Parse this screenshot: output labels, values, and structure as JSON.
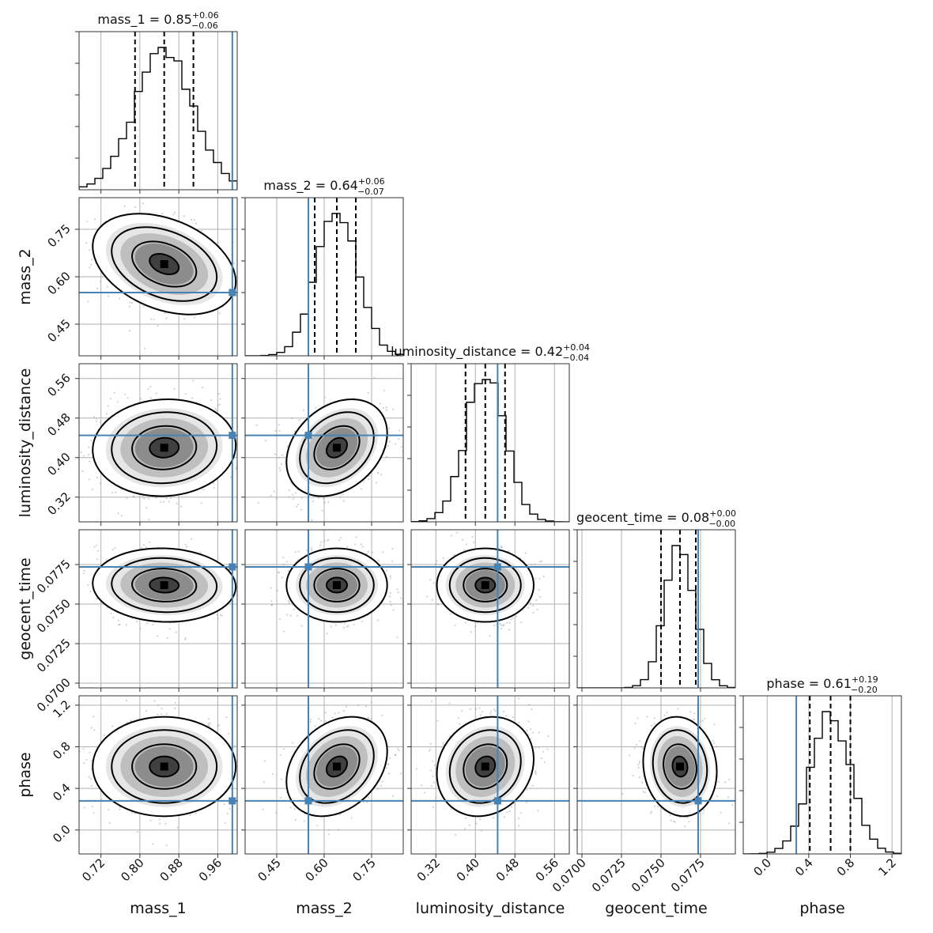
{
  "chart_data": {
    "type": "corner",
    "parameters": [
      "mass_1",
      "mass_2",
      "luminosity_distance",
      "geocent_time",
      "phase"
    ],
    "axis_labels": [
      "mass_1",
      "mass_2",
      "luminosity_distance",
      "geocent_time",
      "phase"
    ],
    "titles": [
      {
        "name": "mass_1",
        "median": "0.85",
        "plus": "+0.06",
        "minus": "−0.06"
      },
      {
        "name": "mass_2",
        "median": "0.64",
        "plus": "+0.06",
        "minus": "−0.07"
      },
      {
        "name": "luminosity_distance",
        "median": "0.42",
        "plus": "+0.04",
        "minus": "−0.04"
      },
      {
        "name": "geocent_time",
        "median": "0.08",
        "plus": "+0.00",
        "minus": "−0.00"
      },
      {
        "name": "phase",
        "median": "0.61",
        "plus": "+0.19",
        "minus": "−0.20"
      }
    ],
    "ranges": [
      [
        0.675,
        1.0
      ],
      [
        0.35,
        0.85
      ],
      [
        0.27,
        0.59
      ],
      [
        0.0697,
        0.0797
      ],
      [
        -0.23,
        1.29
      ]
    ],
    "ticks": [
      [
        0.72,
        0.8,
        0.88,
        0.96
      ],
      [
        0.45,
        0.6,
        0.75
      ],
      [
        0.32,
        0.4,
        0.48,
        0.56
      ],
      [
        0.07,
        0.0725,
        0.075,
        0.0775
      ],
      [
        0.0,
        0.4,
        0.8,
        1.2
      ]
    ],
    "tick_labels": [
      [
        "0.72",
        "0.80",
        "0.88",
        "0.96"
      ],
      [
        "0.45",
        "0.60",
        "0.75"
      ],
      [
        "0.32",
        "0.40",
        "0.48",
        "0.56"
      ],
      [
        "0.0700",
        "0.0725",
        "0.0750",
        "0.0775"
      ],
      [
        "0.0",
        "0.4",
        "0.8",
        "1.2"
      ]
    ],
    "truths": [
      0.99,
      0.55,
      0.445,
      0.07735,
      0.28
    ],
    "medians": [
      0.85,
      0.64,
      0.42,
      0.0762,
      0.61
    ],
    "quantiles_16": [
      0.79,
      0.57,
      0.38,
      0.075,
      0.41
    ],
    "quantiles_84": [
      0.91,
      0.7,
      0.46,
      0.0772,
      0.8
    ],
    "sigmas": [
      0.06,
      0.065,
      0.04,
      0.00095,
      0.195
    ],
    "correlations": {
      "1-0": -0.35,
      "2-0": 0.05,
      "2-1": 0.3,
      "3-0": -0.05,
      "3-1": 0.0,
      "3-2": 0.0,
      "4-0": 0.0,
      "4-1": 0.3,
      "4-2": 0.15,
      "4-3": -0.1
    },
    "grid": true,
    "truth_color": "#4682b4"
  }
}
